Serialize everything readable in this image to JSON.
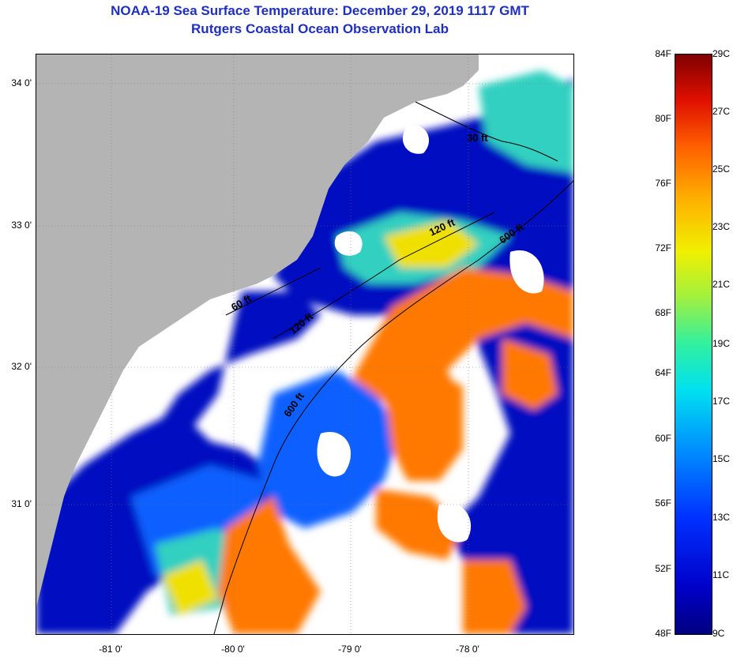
{
  "header": {
    "title": "NOAA-19 Sea Surface Temperature:  December 29, 2019 1117 GMT",
    "subtitle": "Rutgers Coastal Ocean Observation Lab"
  },
  "map": {
    "lat_ticks": [
      "34 0'",
      "33 0'",
      "32 0'",
      "31 0'"
    ],
    "lon_ticks": [
      "-81 0'",
      "-80 0'",
      "-79 0'",
      "-78 0'"
    ],
    "contours": [
      "30 ft",
      "120 ft",
      "600 ft",
      "60 ft",
      "120 ft",
      "600 ft"
    ],
    "colors": {
      "land": "#b4b4b4",
      "cloud": "#ffffff",
      "cold": "#0010c0",
      "cool": "#1060ff",
      "mild": "#30d0c0",
      "warm": "#f0e000",
      "hot": "#ff7800"
    }
  },
  "colorbar": {
    "fahrenheit": [
      "84F",
      "80F",
      "76F",
      "72F",
      "68F",
      "64F",
      "60F",
      "56F",
      "52F",
      "48F"
    ],
    "celsius": [
      "29C",
      "27C",
      "25C",
      "23C",
      "21C",
      "19C",
      "17C",
      "15C",
      "13C",
      "11C",
      "9C"
    ]
  }
}
